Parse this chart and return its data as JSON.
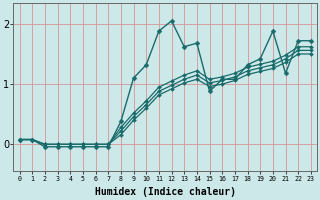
{
  "xlabel": "Humidex (Indice chaleur)",
  "bg_color": "#cce8e8",
  "line_color": "#1a6b6b",
  "grid_color": "#d4a0a0",
  "xlim": [
    -0.5,
    23.5
  ],
  "ylim": [
    -0.45,
    2.35
  ],
  "yticks": [
    0,
    1,
    2
  ],
  "xticks": [
    0,
    1,
    2,
    3,
    4,
    5,
    6,
    7,
    8,
    9,
    10,
    11,
    12,
    13,
    14,
    15,
    16,
    17,
    18,
    19,
    20,
    21,
    22,
    23
  ],
  "series": [
    {
      "x": [
        0,
        1,
        2,
        3,
        4,
        5,
        6,
        7,
        8,
        9,
        10,
        11,
        12,
        13,
        14,
        15,
        16,
        17,
        18,
        19,
        20,
        21,
        22,
        23
      ],
      "y": [
        0.08,
        0.08,
        -0.04,
        -0.04,
        -0.04,
        -0.04,
        -0.04,
        -0.04,
        0.38,
        1.1,
        1.32,
        1.88,
        2.05,
        1.62,
        1.68,
        0.88,
        1.08,
        1.08,
        1.32,
        1.42,
        1.88,
        1.18,
        1.72,
        1.72
      ]
    },
    {
      "x": [
        0,
        1,
        2,
        3,
        4,
        5,
        6,
        7,
        8,
        9,
        10,
        11,
        12,
        13,
        14,
        15,
        16,
        17,
        18,
        19,
        20,
        21,
        22,
        23
      ],
      "y": [
        0.08,
        0.08,
        0.0,
        0.0,
        0.0,
        0.0,
        0.0,
        0.0,
        0.28,
        0.52,
        0.72,
        0.95,
        1.05,
        1.15,
        1.22,
        1.08,
        1.12,
        1.18,
        1.28,
        1.33,
        1.38,
        1.48,
        1.62,
        1.62
      ]
    },
    {
      "x": [
        0,
        1,
        2,
        3,
        4,
        5,
        6,
        7,
        8,
        9,
        10,
        11,
        12,
        13,
        14,
        15,
        16,
        17,
        18,
        19,
        20,
        21,
        22,
        23
      ],
      "y": [
        0.08,
        0.08,
        0.0,
        0.0,
        0.0,
        0.0,
        0.0,
        0.0,
        0.22,
        0.46,
        0.66,
        0.88,
        0.98,
        1.08,
        1.15,
        1.02,
        1.06,
        1.12,
        1.22,
        1.27,
        1.32,
        1.42,
        1.56,
        1.56
      ]
    },
    {
      "x": [
        0,
        1,
        2,
        3,
        4,
        5,
        6,
        7,
        8,
        9,
        10,
        11,
        12,
        13,
        14,
        15,
        16,
        17,
        18,
        19,
        20,
        21,
        22,
        23
      ],
      "y": [
        0.08,
        0.08,
        0.0,
        0.0,
        0.0,
        0.0,
        0.0,
        0.0,
        0.16,
        0.4,
        0.6,
        0.82,
        0.92,
        1.02,
        1.08,
        0.96,
        1.0,
        1.06,
        1.16,
        1.21,
        1.26,
        1.36,
        1.5,
        1.5
      ]
    }
  ],
  "xtick_labels": [
    "0",
    "1",
    "2",
    "3",
    "4",
    "5",
    "6",
    "7",
    "8",
    "9",
    "10",
    "11",
    "12",
    "13",
    "14",
    "15",
    "16",
    "17",
    "18",
    "19",
    "20",
    "21",
    "22",
    "23"
  ]
}
